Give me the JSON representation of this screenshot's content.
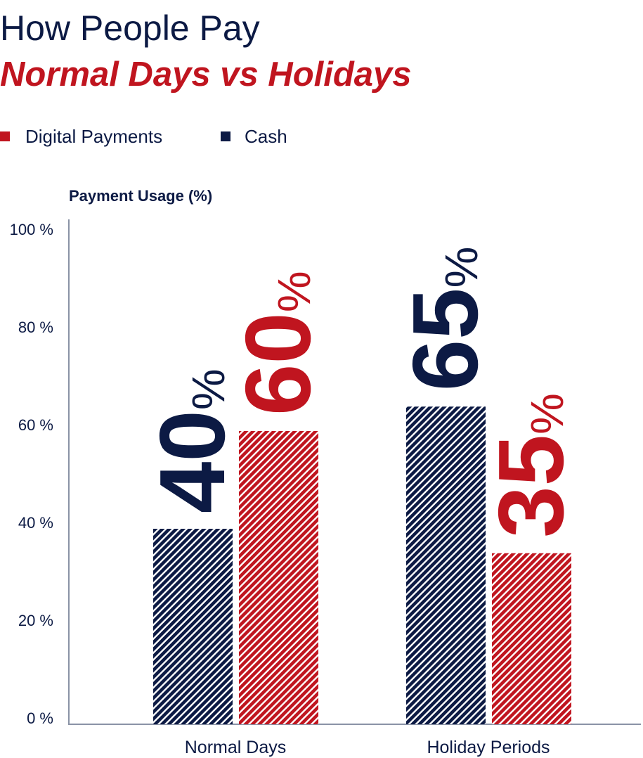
{
  "title": "How People Pay",
  "subtitle": "Normal Days vs Holidays",
  "colors": {
    "navy": "#0c1a44",
    "red": "#c0151f",
    "axis": "#8a93a6"
  },
  "chart_data": {
    "type": "bar",
    "title": "How People Pay",
    "subtitle": "Normal Days vs Holidays",
    "ylabel": "Payment Usage (%)",
    "xlabel": "",
    "ylim": [
      0,
      100
    ],
    "yticks": [
      0,
      20,
      40,
      60,
      80,
      100
    ],
    "ytick_labels": [
      "0 %",
      "20 %",
      "40 %",
      "60 %",
      "80 %",
      "100 %"
    ],
    "categories": [
      "Normal Days",
      "Holiday Periods"
    ],
    "legend_position": "top-left",
    "legend": [
      "Digital Payments",
      "Cash"
    ],
    "grid": false,
    "bar_fill": "diagonal-hatch",
    "series": [
      {
        "name": "Cash",
        "color": "#0c1a44",
        "values": [
          40,
          65
        ],
        "labels": [
          "40",
          "65"
        ]
      },
      {
        "name": "Digital Payments",
        "color": "#c0151f",
        "values": [
          60,
          35
        ],
        "labels": [
          "60",
          "35"
        ]
      }
    ],
    "value_suffix": "%"
  }
}
